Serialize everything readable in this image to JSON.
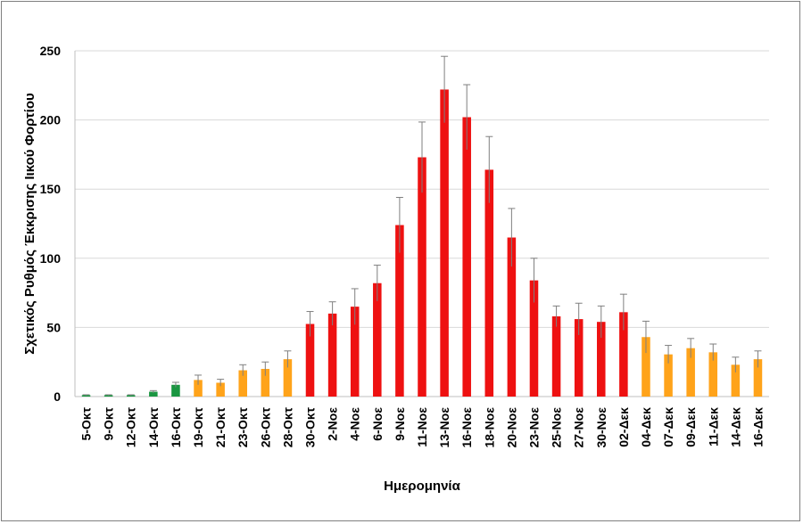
{
  "chart_data": {
    "type": "bar",
    "xlabel": "Ημερομηνία",
    "ylabel": "Σχετικός Ρυθμός Έκκρισης Ιικού Φορτίου",
    "ylim": [
      0,
      250
    ],
    "yticks": [
      0,
      50,
      100,
      150,
      200,
      250
    ],
    "grid": "horizontal",
    "categories": [
      "5-Οκτ",
      "9-Οκτ",
      "12-Οκτ",
      "14-Οκτ",
      "16-Οκτ",
      "19-Οκτ",
      "21-Οκτ",
      "23-Οκτ",
      "26-Οκτ",
      "28-Οκτ",
      "30-Οκτ",
      "2-Νοε",
      "4-Νοε",
      "6-Νοε",
      "9-Νοε",
      "11-Νοε",
      "13-Νοε",
      "16-Νοε",
      "18-Νοε",
      "20-Νοε",
      "23-Νοε",
      "25-Νοε",
      "27-Νοε",
      "30-Νοε",
      "02-Δεκ",
      "04-Δεκ",
      "07-Δεκ",
      "09-Δεκ",
      "11-Δεκ",
      "14-Δεκ",
      "16-Δεκ"
    ],
    "values": [
      1,
      1,
      1,
      3.5,
      8.5,
      12,
      10,
      19,
      20,
      27,
      52.5,
      60,
      65,
      82,
      124,
      173,
      222,
      202,
      164,
      115,
      84,
      58,
      56,
      54,
      61,
      43,
      30.5,
      35,
      32,
      23,
      27
    ],
    "error_plus": [
      0.3,
      0.3,
      0.3,
      0.8,
      1.8,
      3.5,
      2.5,
      4,
      5,
      6,
      9,
      8.5,
      13,
      13,
      20,
      25.5,
      24,
      23.5,
      24,
      21,
      16,
      7.5,
      11.5,
      11.5,
      13,
      11.5,
      6.5,
      7,
      6,
      5.5,
      6
    ],
    "bar_colors": [
      "#1a9641",
      "#1a9641",
      "#1a9641",
      "#1a9641",
      "#1a9641",
      "#ffa31a",
      "#ffa31a",
      "#ffa31a",
      "#ffa31a",
      "#ffa31a",
      "#ee1111",
      "#ee1111",
      "#ee1111",
      "#ee1111",
      "#ee1111",
      "#ee1111",
      "#ee1111",
      "#ee1111",
      "#ee1111",
      "#ee1111",
      "#ee1111",
      "#ee1111",
      "#ee1111",
      "#ee1111",
      "#ee1111",
      "#ffa31a",
      "#ffa31a",
      "#ffa31a",
      "#ffa31a",
      "#ffa31a",
      "#ffa31a"
    ]
  }
}
